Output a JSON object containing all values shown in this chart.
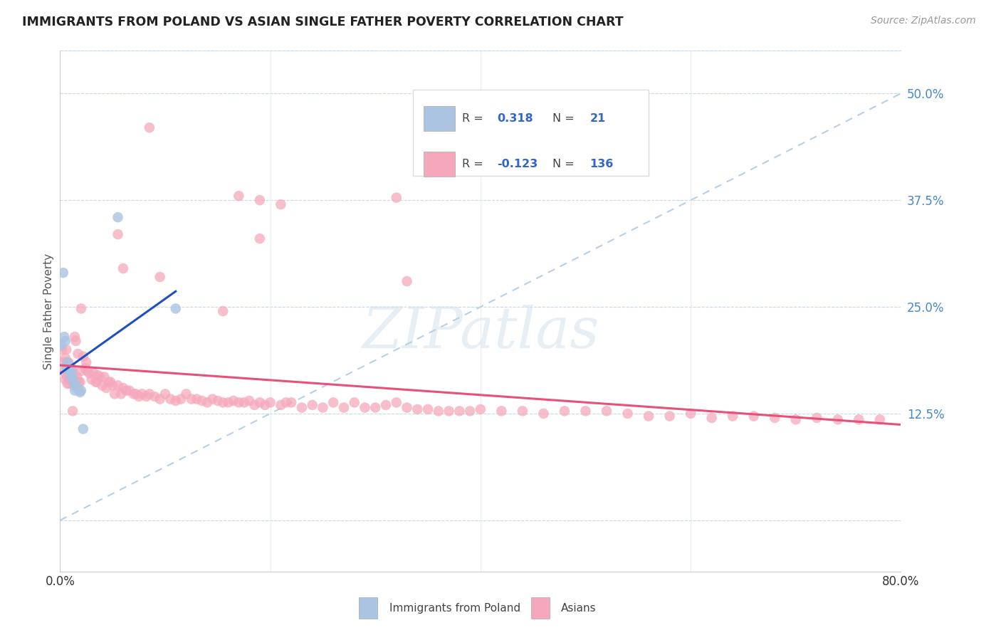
{
  "title": "IMMIGRANTS FROM POLAND VS ASIAN SINGLE FATHER POVERTY CORRELATION CHART",
  "source": "Source: ZipAtlas.com",
  "ylabel": "Single Father Poverty",
  "legend_label1": "Immigrants from Poland",
  "legend_label2": "Asians",
  "color_blue": "#aac4e2",
  "color_pink": "#f5a8bb",
  "line_blue": "#2050c0",
  "line_pink": "#e8507a",
  "line_dash_color": "#b8cfe8",
  "watermark": "ZIPatlas",
  "xlim": [
    0.0,
    0.8
  ],
  "ylim": [
    -0.06,
    0.55
  ],
  "ytick_vals": [
    0.0,
    0.125,
    0.25,
    0.375,
    0.5
  ],
  "ytick_labels": [
    "",
    "12.5%",
    "25.0%",
    "37.5%",
    "50.0%"
  ],
  "poland_x": [
    0.001,
    0.003,
    0.004,
    0.005,
    0.006,
    0.007,
    0.008,
    0.009,
    0.01,
    0.011,
    0.012,
    0.013,
    0.014,
    0.015,
    0.016,
    0.017,
    0.019,
    0.02,
    0.022,
    0.055,
    0.11
  ],
  "poland_y": [
    0.205,
    0.29,
    0.215,
    0.21,
    0.18,
    0.185,
    0.18,
    0.175,
    0.17,
    0.172,
    0.165,
    0.162,
    0.152,
    0.157,
    0.155,
    0.155,
    0.15,
    0.152,
    0.107,
    0.355,
    0.248
  ],
  "asian_x": [
    0.002,
    0.003,
    0.004,
    0.005,
    0.005,
    0.006,
    0.006,
    0.007,
    0.007,
    0.008,
    0.008,
    0.009,
    0.009,
    0.01,
    0.01,
    0.011,
    0.011,
    0.012,
    0.012,
    0.013,
    0.013,
    0.014,
    0.015,
    0.016,
    0.017,
    0.018,
    0.019,
    0.02,
    0.022,
    0.024,
    0.025,
    0.026,
    0.028,
    0.03,
    0.032,
    0.034,
    0.035,
    0.036,
    0.038,
    0.04,
    0.042,
    0.044,
    0.046,
    0.048,
    0.05,
    0.052,
    0.055,
    0.058,
    0.06,
    0.063,
    0.066,
    0.07,
    0.072,
    0.075,
    0.078,
    0.082,
    0.085,
    0.09,
    0.095,
    0.1,
    0.105,
    0.11,
    0.115,
    0.12,
    0.125,
    0.13,
    0.135,
    0.14,
    0.145,
    0.15,
    0.155,
    0.16,
    0.165,
    0.17,
    0.175,
    0.18,
    0.185,
    0.19,
    0.195,
    0.2,
    0.21,
    0.215,
    0.22,
    0.23,
    0.24,
    0.25,
    0.26,
    0.27,
    0.28,
    0.29,
    0.3,
    0.31,
    0.32,
    0.33,
    0.34,
    0.35,
    0.36,
    0.37,
    0.38,
    0.39,
    0.4,
    0.42,
    0.44,
    0.46,
    0.48,
    0.5,
    0.52,
    0.54,
    0.56,
    0.58,
    0.6,
    0.62,
    0.64,
    0.66,
    0.68,
    0.7,
    0.72,
    0.74,
    0.76,
    0.78,
    0.085,
    0.055,
    0.095,
    0.19,
    0.19,
    0.06,
    0.21,
    0.17,
    0.32,
    0.33,
    0.155,
    0.02,
    0.017,
    0.015,
    0.012,
    0.014
  ],
  "asian_y": [
    0.2,
    0.185,
    0.175,
    0.19,
    0.165,
    0.2,
    0.17,
    0.185,
    0.16,
    0.185,
    0.165,
    0.175,
    0.16,
    0.18,
    0.165,
    0.175,
    0.165,
    0.175,
    0.162,
    0.168,
    0.158,
    0.16,
    0.162,
    0.168,
    0.162,
    0.162,
    0.162,
    0.175,
    0.192,
    0.178,
    0.185,
    0.175,
    0.172,
    0.165,
    0.172,
    0.162,
    0.162,
    0.17,
    0.168,
    0.158,
    0.168,
    0.155,
    0.162,
    0.162,
    0.158,
    0.148,
    0.158,
    0.148,
    0.155,
    0.152,
    0.152,
    0.148,
    0.148,
    0.145,
    0.148,
    0.145,
    0.148,
    0.145,
    0.142,
    0.148,
    0.142,
    0.14,
    0.142,
    0.148,
    0.142,
    0.142,
    0.14,
    0.138,
    0.142,
    0.14,
    0.138,
    0.138,
    0.14,
    0.138,
    0.138,
    0.14,
    0.135,
    0.138,
    0.135,
    0.138,
    0.135,
    0.138,
    0.138,
    0.132,
    0.135,
    0.132,
    0.138,
    0.132,
    0.138,
    0.132,
    0.132,
    0.135,
    0.138,
    0.132,
    0.13,
    0.13,
    0.128,
    0.128,
    0.128,
    0.128,
    0.13,
    0.128,
    0.128,
    0.125,
    0.128,
    0.128,
    0.128,
    0.125,
    0.122,
    0.122,
    0.125,
    0.12,
    0.122,
    0.122,
    0.12,
    0.118,
    0.12,
    0.118,
    0.118,
    0.118,
    0.46,
    0.335,
    0.285,
    0.375,
    0.33,
    0.295,
    0.37,
    0.38,
    0.378,
    0.28,
    0.245,
    0.248,
    0.195,
    0.21,
    0.128,
    0.215
  ]
}
